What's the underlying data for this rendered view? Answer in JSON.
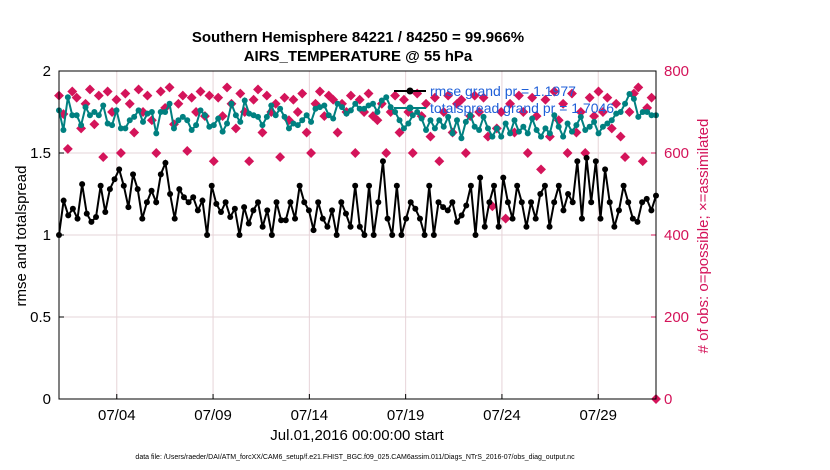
{
  "chart_data": {
    "type": "line",
    "title": "Southern Hemisphere 84221 / 84250 = 99.966%",
    "subtitle": "AIRS_TEMPERATURE @ 55 hPa",
    "xlabel": "Jul.01,2016 00:00:00 start",
    "ylabel": "rmse and totalspread",
    "y2label": "# of obs: o=possible; ×=assimilated",
    "xlim": [
      1,
      32
    ],
    "ylim": [
      0,
      2
    ],
    "y2lim": [
      0,
      800
    ],
    "x_ticks": [
      4,
      9,
      14,
      19,
      24,
      29
    ],
    "x_tick_labels": [
      "07/04",
      "07/09",
      "07/14",
      "07/19",
      "07/24",
      "07/29"
    ],
    "y_ticks": [
      0,
      0.5,
      1,
      1.5,
      2
    ],
    "y_tick_labels": [
      "0",
      "0.5",
      "1",
      "1.5",
      "2"
    ],
    "y2_ticks": [
      0,
      200,
      400,
      600,
      800
    ],
    "y2_tick_labels": [
      "0",
      "200",
      "400",
      "600",
      "800"
    ],
    "grid": true,
    "legend_position": "top-right",
    "colors": {
      "rmse": "#000000",
      "spread": "#008080",
      "obs": "#d4145a",
      "legend_text": "#1f5fd8"
    },
    "series": [
      {
        "name": "rmse grand pr = 1.1977",
        "axis": "left",
        "values": [
          1.0,
          1.21,
          1.12,
          1.16,
          1.1,
          1.31,
          1.13,
          1.08,
          1.11,
          1.3,
          1.14,
          1.28,
          1.34,
          1.4,
          1.3,
          1.17,
          1.37,
          1.28,
          1.1,
          1.2,
          1.27,
          1.2,
          1.37,
          1.44,
          1.25,
          1.1,
          1.28,
          1.23,
          1.2,
          1.23,
          1.15,
          1.21,
          1.0,
          1.3,
          1.19,
          1.14,
          1.2,
          1.11,
          1.16,
          1.0,
          1.17,
          1.07,
          1.15,
          1.2,
          1.05,
          1.15,
          1.0,
          1.2,
          1.09,
          1.09,
          1.2,
          1.1,
          1.3,
          1.2,
          1.15,
          1.03,
          1.2,
          1.1,
          1.05,
          1.15,
          1.0,
          1.2,
          1.13,
          1.05,
          1.3,
          1.05,
          1.0,
          1.3,
          1.0,
          1.2,
          1.45,
          1.1,
          1.0,
          1.3,
          1.0,
          1.1,
          1.2,
          1.16,
          1.1,
          1.0,
          1.3,
          1.0,
          1.2,
          1.17,
          1.15,
          1.2,
          1.08,
          1.12,
          1.18,
          1.3,
          1.0,
          1.35,
          1.05,
          1.2,
          1.3,
          1.05,
          1.35,
          1.2,
          1.1,
          1.3,
          1.2,
          1.05,
          1.2,
          1.1,
          1.25,
          1.3,
          1.05,
          1.2,
          1.3,
          1.15,
          1.25,
          1.2,
          1.45,
          1.1,
          1.47,
          1.2,
          1.45,
          1.1,
          1.4,
          1.2,
          1.05,
          1.15,
          1.3,
          1.2,
          1.1,
          1.08,
          1.2,
          1.22,
          1.15,
          1.24
        ]
      },
      {
        "name": "totalspread grand pr = 1.7046",
        "axis": "left",
        "values": [
          1.76,
          1.64,
          1.84,
          1.73,
          1.73,
          1.67,
          1.78,
          1.73,
          1.75,
          1.73,
          1.79,
          1.68,
          1.67,
          1.76,
          1.65,
          1.65,
          1.7,
          1.72,
          1.76,
          1.69,
          1.74,
          1.75,
          1.62,
          1.75,
          1.75,
          1.8,
          1.65,
          1.7,
          1.72,
          1.7,
          1.64,
          1.67,
          1.76,
          1.73,
          1.66,
          1.67,
          1.71,
          1.63,
          1.68,
          1.8,
          1.73,
          1.69,
          1.82,
          1.74,
          1.73,
          1.72,
          1.67,
          1.72,
          1.79,
          1.73,
          1.77,
          1.72,
          1.65,
          1.68,
          1.67,
          1.7,
          1.73,
          1.69,
          1.77,
          1.78,
          1.79,
          1.73,
          1.71,
          1.8,
          1.78,
          1.74,
          1.76,
          1.8,
          1.77,
          1.77,
          1.79,
          1.8,
          1.75,
          1.82,
          1.84,
          1.78,
          1.75,
          1.7,
          1.65,
          1.68,
          1.73,
          1.75,
          1.71,
          1.64,
          1.7,
          1.65,
          1.7,
          1.66,
          1.72,
          1.62,
          1.7,
          1.59,
          1.69,
          1.73,
          1.66,
          1.64,
          1.72,
          1.65,
          1.6,
          1.65,
          1.6,
          1.68,
          1.62,
          1.7,
          1.63,
          1.66,
          1.62,
          1.71,
          1.64,
          1.6,
          1.65,
          1.62,
          1.73,
          1.66,
          1.6,
          1.68,
          1.63,
          1.67,
          1.72,
          1.64,
          1.66,
          1.69,
          1.62,
          1.66,
          1.68,
          1.7,
          1.74,
          1.75,
          1.8,
          1.86,
          1.83,
          1.72,
          1.75,
          1.75,
          1.73,
          1.73
        ]
      },
      {
        "name": "obs possible/assimilated",
        "axis": "right",
        "values": [
          740,
          695,
          610,
          750,
          735,
          660,
          720,
          755,
          670,
          740,
          590,
          750,
          700,
          730,
          600,
          745,
          720,
          650,
          755,
          700,
          740,
          680,
          600,
          750,
          710,
          760,
          670,
          720,
          740,
          605,
          735,
          700,
          750,
          690,
          740,
          580,
          735,
          690,
          760,
          720,
          660,
          745,
          700,
          580,
          730,
          755,
          650,
          740,
          700,
          720,
          590,
          735,
          680,
          730,
          700,
          745,
          650,
          600,
          720,
          750,
          690,
          740,
          730,
          650,
          720,
          700,
          740,
          600,
          730,
          700,
          745,
          690,
          680,
          720,
          600,
          700,
          740,
          650,
          730,
          700,
          600,
          745,
          690,
          720,
          640,
          735,
          580,
          700,
          740,
          650,
          720,
          730,
          600,
          690,
          740,
          700,
          735,
          640,
          470,
          660,
          700,
          440,
          720,
          650,
          740,
          700,
          600,
          735,
          690,
          560,
          730,
          640,
          750,
          680,
          720,
          600,
          745,
          650,
          700,
          600,
          735,
          690,
          750,
          700,
          735,
          660,
          720,
          640,
          590,
          700,
          745,
          760,
          580,
          710,
          735,
          0
        ]
      }
    ]
  },
  "footer": "data file: /Users/raeder/DAI/ATM_forcXX/CAM6_setup/f.e21.FHIST_BGC.f09_025.CAM6assim.011/Diags_NTrS_2016-07/obs_diag_output.nc"
}
